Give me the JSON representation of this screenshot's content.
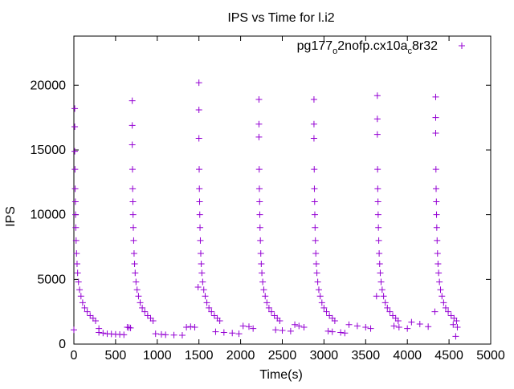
{
  "chart_data": {
    "type": "scatter",
    "title": "IPS vs Time for l.i2",
    "xlabel": "Time(s)",
    "ylabel": "IPS",
    "xlim": [
      0,
      5000
    ],
    "ylim": [
      0,
      23800
    ],
    "xticks": [
      0,
      500,
      1000,
      1500,
      2000,
      2500,
      3000,
      3500,
      4000,
      4500,
      5000
    ],
    "yticks": [
      0,
      5000,
      10000,
      15000,
      20000
    ],
    "grid": false,
    "legend_position": "top-right",
    "series": [
      {
        "name": "pg177o2nofp.cx10ac8r32",
        "legend_main": "pg177",
        "legend_sub1": "o",
        "legend_mid": "2nofp.cx10a",
        "legend_sub2": "c",
        "legend_end": "8r32",
        "color": "#9400d3",
        "marker": "plus",
        "cycles": [
          {
            "start": 10,
            "peaks": [
              18200,
              16800,
              14900
            ]
          },
          {
            "start": 700,
            "peaks": [
              18800,
              16900,
              15400
            ]
          },
          {
            "start": 1500,
            "peaks": [
              20200,
              18100,
              15900
            ]
          },
          {
            "start": 2220,
            "peaks": [
              18900,
              17000,
              16000
            ]
          },
          {
            "start": 2880,
            "peaks": [
              18900,
              17000,
              15900
            ]
          },
          {
            "start": 3640,
            "peaks": [
              19200,
              17400,
              16200
            ]
          },
          {
            "start": 4340,
            "peaks": [
              19100,
              17500,
              16300
            ]
          }
        ],
        "decay_offsets": [
          3,
          5,
          8,
          10,
          13,
          17,
          22,
          28,
          35,
          45,
          58,
          75,
          95,
          120,
          150,
          185,
          220,
          250
        ],
        "decay_values": [
          13500,
          12000,
          11000,
          10000,
          9000,
          8000,
          7000,
          6200,
          5500,
          4800,
          4200,
          3700,
          3200,
          2800,
          2500,
          2200,
          2000,
          1800
        ],
        "flat_points": [
          [
            0,
            1100
          ],
          [
            300,
            1200
          ],
          [
            300,
            900
          ],
          [
            350,
            850
          ],
          [
            400,
            800
          ],
          [
            450,
            780
          ],
          [
            500,
            760
          ],
          [
            550,
            740
          ],
          [
            600,
            720
          ],
          [
            640,
            1300
          ],
          [
            660,
            1280
          ],
          [
            680,
            1250
          ],
          [
            980,
            800
          ],
          [
            1050,
            750
          ],
          [
            1100,
            720
          ],
          [
            1200,
            700
          ],
          [
            1300,
            680
          ],
          [
            1350,
            1300
          ],
          [
            1400,
            1350
          ],
          [
            1450,
            1300
          ],
          [
            1700,
            950
          ],
          [
            1800,
            900
          ],
          [
            1900,
            850
          ],
          [
            1980,
            800
          ],
          [
            2030,
            1400
          ],
          [
            2100,
            1350
          ],
          [
            2150,
            1200
          ],
          [
            2420,
            1100
          ],
          [
            2500,
            1050
          ],
          [
            2600,
            1000
          ],
          [
            2650,
            1500
          ],
          [
            2700,
            1400
          ],
          [
            2760,
            1300
          ],
          [
            3050,
            1000
          ],
          [
            3100,
            950
          ],
          [
            3200,
            900
          ],
          [
            3250,
            850
          ],
          [
            3300,
            1500
          ],
          [
            3400,
            1400
          ],
          [
            3500,
            1300
          ],
          [
            3560,
            1200
          ],
          [
            3840,
            1400
          ],
          [
            3900,
            1300
          ],
          [
            4000,
            1200
          ],
          [
            4050,
            1700
          ],
          [
            4150,
            1550
          ],
          [
            4250,
            1350
          ],
          [
            4550,
            1500
          ],
          [
            4600,
            1300
          ],
          [
            4580,
            600
          ],
          [
            1490,
            4400
          ],
          [
            3630,
            3700
          ],
          [
            4330,
            2500
          ]
        ]
      }
    ]
  }
}
